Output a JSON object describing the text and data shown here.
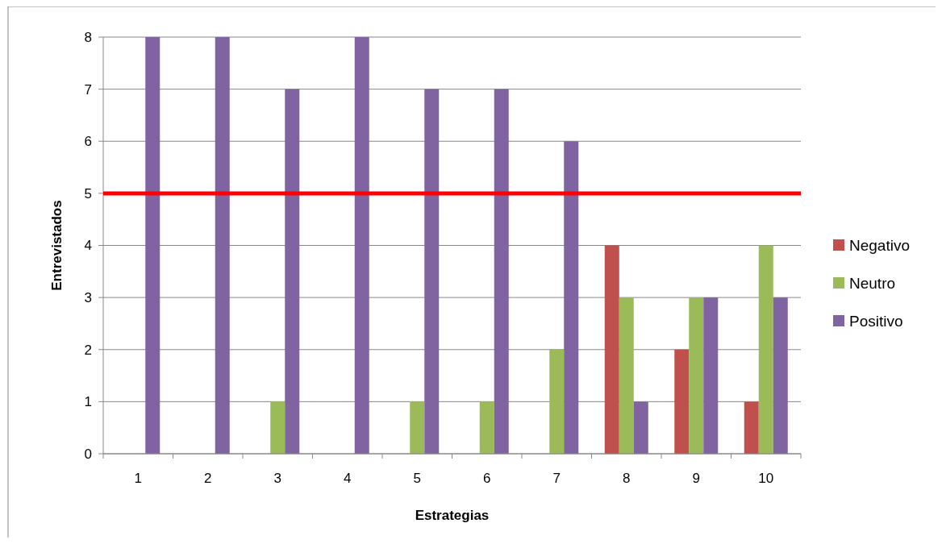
{
  "chart_data": {
    "type": "bar",
    "xlabel": "Estrategias",
    "ylabel": "Entrevistados",
    "categories": [
      "1",
      "2",
      "3",
      "4",
      "5",
      "6",
      "7",
      "8",
      "9",
      "10"
    ],
    "series": [
      {
        "name": "Negativo",
        "color": "#c0504d",
        "values": [
          0,
          0,
          0,
          0,
          0,
          0,
          0,
          4,
          2,
          1
        ]
      },
      {
        "name": "Neutro",
        "color": "#9bbb59",
        "values": [
          0,
          0,
          1,
          0,
          1,
          1,
          2,
          3,
          3,
          4
        ]
      },
      {
        "name": "Positivo",
        "color": "#8064a2",
        "values": [
          8,
          8,
          7,
          8,
          7,
          7,
          6,
          1,
          3,
          3
        ]
      }
    ],
    "ylim": [
      0,
      8
    ],
    "yticks": [
      0,
      1,
      2,
      3,
      4,
      5,
      6,
      7,
      8
    ],
    "grid": "y",
    "legend": "right",
    "ref_lines": [
      {
        "axis": "y",
        "value": 5,
        "color": "#ff0000"
      }
    ]
  }
}
